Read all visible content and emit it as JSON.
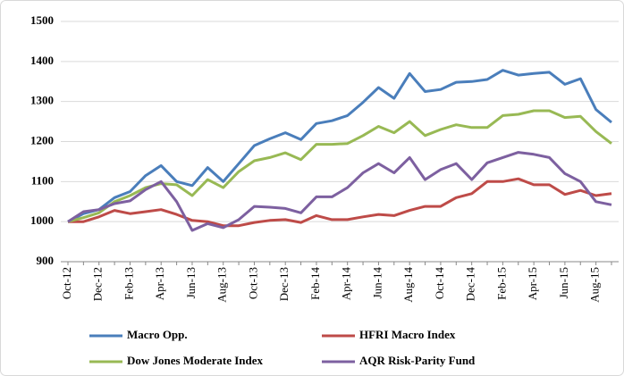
{
  "chart_data": {
    "type": "line",
    "categories": [
      "Oct-12",
      null,
      "Dec-12",
      null,
      "Feb-13",
      null,
      "Apr-13",
      null,
      "Jun-13",
      null,
      "Aug-13",
      null,
      "Oct-13",
      null,
      "Dec-13",
      null,
      "Feb-14",
      null,
      "Apr-14",
      null,
      "Jun-14",
      null,
      "Aug-14",
      null,
      "Oct-14",
      null,
      "Dec-14",
      null,
      "Feb-15",
      null,
      "Apr-15",
      null,
      "Jun-15",
      null,
      "Aug-15",
      null
    ],
    "series": [
      {
        "name": "Macro Opp.",
        "color": "#4a7ebb",
        "values": [
          1000,
          1020,
          1030,
          1060,
          1075,
          1115,
          1140,
          1100,
          1090,
          1135,
          1100,
          1145,
          1190,
          1207,
          1222,
          1205,
          1245,
          1252,
          1265,
          1298,
          1335,
          1308,
          1370,
          1325,
          1330,
          1348,
          1350,
          1355,
          1378,
          1366,
          1370,
          1373,
          1343,
          1357,
          1280,
          1248
        ]
      },
      {
        "name": "HFRI Macro Index",
        "color": "#be4b48",
        "values": [
          1000,
          1000,
          1012,
          1028,
          1020,
          1025,
          1030,
          1018,
          1003,
          1000,
          990,
          990,
          998,
          1003,
          1005,
          998,
          1015,
          1005,
          1005,
          1012,
          1018,
          1015,
          1028,
          1038,
          1038,
          1060,
          1070,
          1100,
          1100,
          1107,
          1092,
          1092,
          1068,
          1078,
          1065,
          1070
        ]
      },
      {
        "name": "Dow Jones Moderate Index",
        "color": "#98b954",
        "values": [
          1000,
          1010,
          1022,
          1050,
          1065,
          1085,
          1095,
          1092,
          1065,
          1105,
          1085,
          1125,
          1152,
          1160,
          1172,
          1155,
          1193,
          1193,
          1195,
          1215,
          1238,
          1222,
          1250,
          1215,
          1230,
          1242,
          1235,
          1235,
          1265,
          1268,
          1277,
          1277,
          1260,
          1263,
          1225,
          1195
        ]
      },
      {
        "name": "AQR Risk-Parity Fund",
        "color": "#7d60a0",
        "values": [
          1000,
          1025,
          1030,
          1045,
          1052,
          1080,
          1100,
          1050,
          978,
          995,
          985,
          1005,
          1038,
          1036,
          1033,
          1022,
          1062,
          1062,
          1085,
          1122,
          1145,
          1122,
          1160,
          1105,
          1130,
          1145,
          1105,
          1147,
          1160,
          1173,
          1168,
          1160,
          1120,
          1100,
          1050,
          1042
        ]
      }
    ],
    "ylim": [
      900,
      1500
    ],
    "yticks": [
      900,
      1000,
      1100,
      1200,
      1300,
      1400,
      1500
    ],
    "grid": true
  }
}
